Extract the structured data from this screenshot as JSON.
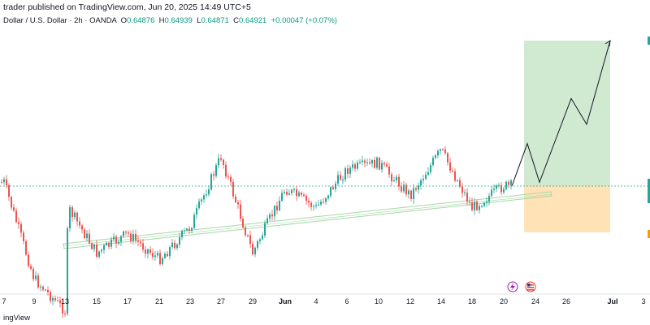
{
  "header": {
    "publisher_line": "trader published on TradingView.com, Jun 20, 2025 14:49 UTC+5",
    "symbol": "Dollar / U.S. Dollar · 2h · OANDA",
    "open_label": "O",
    "open": "0.64876",
    "high_label": "H",
    "high": "0.64939",
    "low_label": "L",
    "low": "0.64871",
    "close_label": "C",
    "close": "0.64921",
    "change": "+0.00047 (+0.07%)"
  },
  "footer": {
    "text": "ingView"
  },
  "colors": {
    "up": "#26a69a",
    "down": "#ef5350",
    "target_zone": "#c8e6c9",
    "stop_zone": "#ffe0b2",
    "channel": "#a5d6a7",
    "price_line": "#26a69a"
  },
  "chart_data": {
    "type": "candlestick",
    "symbol": "Dollar / U.S. Dollar",
    "timeframe": "2h",
    "x_tick_labels": [
      "7",
      "9",
      "13",
      "15",
      "17",
      "21",
      "23",
      "27",
      "29",
      "Jun",
      "4",
      "6",
      "10",
      "12",
      "14",
      "18",
      "20",
      "24",
      "26",
      "Jul",
      "3"
    ],
    "bold_ticks": [
      "Jun",
      "Jul"
    ],
    "last_ohlc": {
      "open": 0.64876,
      "high": 0.64939,
      "low": 0.64871,
      "close": 0.64921
    },
    "price_path_approx": [
      {
        "x": "7",
        "price": 0.6495
      },
      {
        "x": "9",
        "price": 0.642
      },
      {
        "x": "13",
        "price": 0.6395
      },
      {
        "x": "13",
        "price": 0.6475
      },
      {
        "x": "15",
        "price": 0.644
      },
      {
        "x": "17",
        "price": 0.6455
      },
      {
        "x": "21",
        "price": 0.6435
      },
      {
        "x": "23",
        "price": 0.646
      },
      {
        "x": "27",
        "price": 0.6515
      },
      {
        "x": "29",
        "price": 0.644
      },
      {
        "x": "Jun",
        "price": 0.649
      },
      {
        "x": "4",
        "price": 0.6475
      },
      {
        "x": "6",
        "price": 0.6505
      },
      {
        "x": "10",
        "price": 0.651
      },
      {
        "x": "12",
        "price": 0.6485
      },
      {
        "x": "14",
        "price": 0.652
      },
      {
        "x": "18",
        "price": 0.6475
      },
      {
        "x": "20",
        "price": 0.6492
      }
    ],
    "trade_setup": {
      "direction": "long",
      "entry": 0.6492,
      "target": 0.6605,
      "stop": 0.6456
    },
    "projection_path": [
      {
        "x": "20",
        "price": 0.6492
      },
      {
        "x": "24",
        "price": 0.6525
      },
      {
        "x": "24",
        "price": 0.6495
      },
      {
        "x": "26",
        "price": 0.656
      },
      {
        "x": "26",
        "price": 0.654
      },
      {
        "x": "Jul",
        "price": 0.6605
      }
    ]
  }
}
